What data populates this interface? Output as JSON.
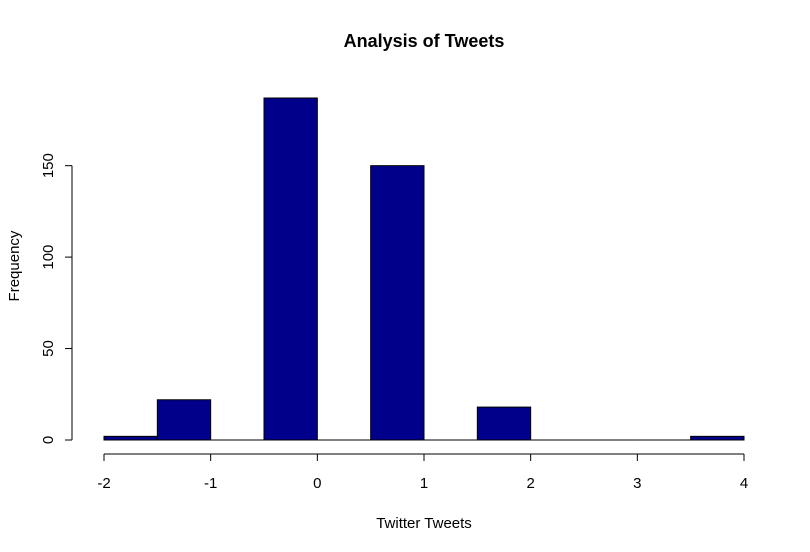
{
  "chart_data": {
    "type": "bar",
    "title": "Analysis of Tweets",
    "xlabel": "Twitter Tweets",
    "ylabel": "Frequency",
    "bins": [
      {
        "start": -2.0,
        "end": -1.5,
        "value": 2
      },
      {
        "start": -1.5,
        "end": -1.0,
        "value": 22
      },
      {
        "start": -1.0,
        "end": -0.5,
        "value": 0
      },
      {
        "start": -0.5,
        "end": 0.0,
        "value": 187
      },
      {
        "start": 0.0,
        "end": 0.5,
        "value": 0
      },
      {
        "start": 0.5,
        "end": 1.0,
        "value": 150
      },
      {
        "start": 1.0,
        "end": 1.5,
        "value": 0
      },
      {
        "start": 1.5,
        "end": 2.0,
        "value": 18
      },
      {
        "start": 2.0,
        "end": 2.5,
        "value": 0
      },
      {
        "start": 2.5,
        "end": 3.0,
        "value": 0
      },
      {
        "start": 3.0,
        "end": 3.5,
        "value": 0
      },
      {
        "start": 3.5,
        "end": 4.0,
        "value": 2
      }
    ],
    "xlim": [
      -2,
      4
    ],
    "ylim": [
      0,
      187
    ],
    "x_ticks": [
      -2,
      -1,
      0,
      1,
      2,
      3,
      4
    ],
    "x_tick_labels": [
      "-2",
      "-1",
      "0",
      "1",
      "2",
      "3",
      "4"
    ],
    "y_ticks": [
      0,
      50,
      100,
      150
    ],
    "y_tick_labels": [
      "0",
      "50",
      "100",
      "150"
    ],
    "grid": false,
    "bar_color": "#00008B",
    "border_color": "#000000"
  }
}
